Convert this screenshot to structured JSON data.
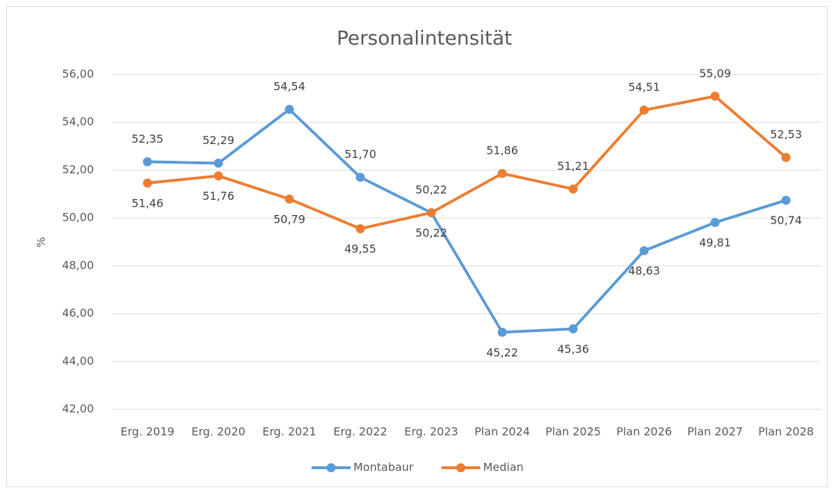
{
  "chart_data": {
    "type": "line",
    "title": "Personalintensität",
    "y_label": "%",
    "categories": [
      "Erg. 2019",
      "Erg. 2020",
      "Erg. 2021",
      "Erg. 2022",
      "Erg. 2023",
      "Plan 2024",
      "Plan 2025",
      "Plan 2026",
      "Plan 2027",
      "Plan 2028"
    ],
    "series": [
      {
        "name": "Montabaur",
        "color": "#5b9bd5",
        "values": [
          52.35,
          52.29,
          54.54,
          51.7,
          50.22,
          45.22,
          45.36,
          48.63,
          49.81,
          50.74
        ],
        "value_labels": [
          "52,35",
          "52,29",
          "54,54",
          "51,70",
          "50,22",
          "45,22",
          "45,36",
          "48,63",
          "49,81",
          "50,74"
        ]
      },
      {
        "name": "Median",
        "color": "#ed7d31",
        "values": [
          51.46,
          51.76,
          50.79,
          49.55,
          50.22,
          51.86,
          51.21,
          54.51,
          55.09,
          52.53
        ],
        "value_labels": [
          "51,46",
          "51,76",
          "50,79",
          "49,55",
          "50,22",
          "51,86",
          "51,21",
          "54,51",
          "55,09",
          "52,53"
        ]
      }
    ],
    "ylim": [
      42,
      56
    ],
    "yticks": [
      {
        "value": 42,
        "label": "42,00"
      },
      {
        "value": 44,
        "label": "44,00"
      },
      {
        "value": 46,
        "label": "46,00"
      },
      {
        "value": 48,
        "label": "48,00"
      },
      {
        "value": 50,
        "label": "50,00"
      },
      {
        "value": 52,
        "label": "52,00"
      },
      {
        "value": 54,
        "label": "54,00"
      },
      {
        "value": 56,
        "label": "56,00"
      }
    ],
    "grid": true,
    "legend": "bottom"
  }
}
